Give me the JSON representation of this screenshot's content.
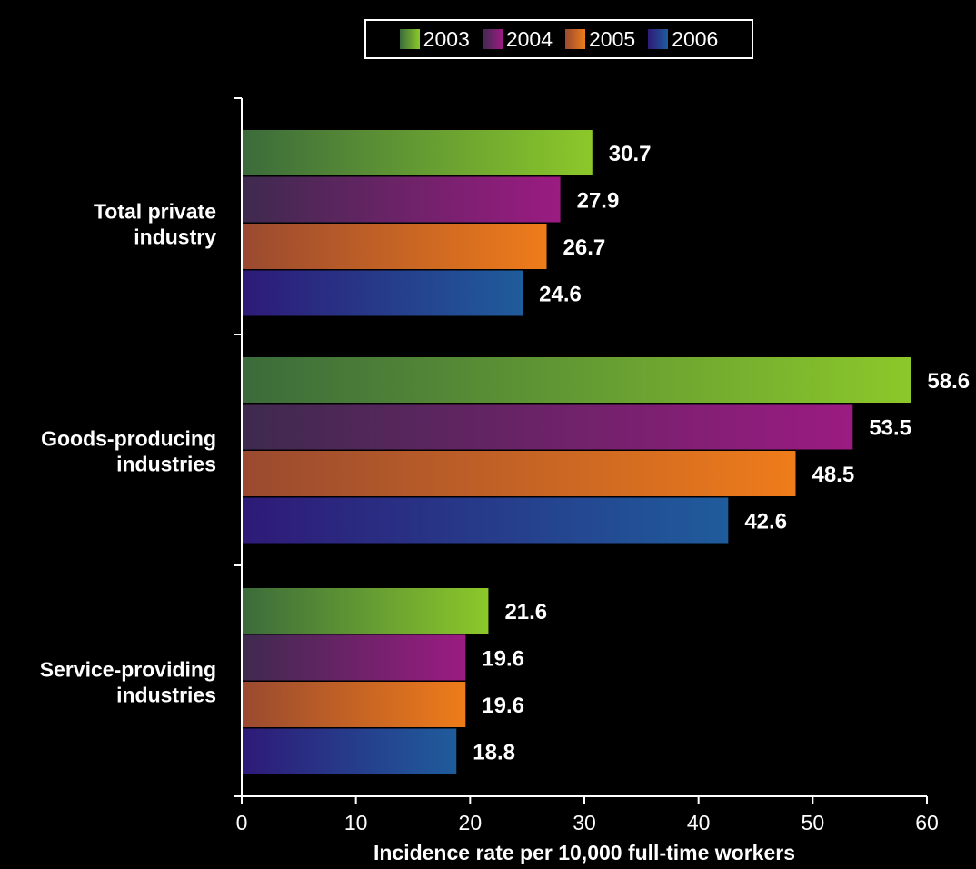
{
  "chart_data": {
    "type": "bar",
    "orientation": "horizontal",
    "categories": [
      "Total private industry",
      "Goods-producing industries",
      "Service-providing industries"
    ],
    "category_lines": [
      [
        "Total private",
        "industry"
      ],
      [
        "Goods-producing",
        "industries"
      ],
      [
        "Service-providing",
        "industries"
      ]
    ],
    "series": [
      {
        "name": "2003",
        "values": [
          30.7,
          58.6,
          21.6
        ],
        "color_start": "#3b6b3b",
        "color_end": "#8cc82a"
      },
      {
        "name": "2004",
        "values": [
          27.9,
          53.5,
          19.6
        ],
        "color_start": "#3e2a4e",
        "color_end": "#9b1b82"
      },
      {
        "name": "2005",
        "values": [
          26.7,
          48.5,
          19.6
        ],
        "color_start": "#9a4a30",
        "color_end": "#ee7c1a"
      },
      {
        "name": "2006",
        "values": [
          24.6,
          42.6,
          18.8
        ],
        "color_start": "#2e1a78",
        "color_end": "#1f5c9c"
      }
    ],
    "xlabel": "Incidence rate per 10,000 full-time workers",
    "xlim": [
      0,
      60
    ],
    "xticks": [
      "0",
      "10",
      "20",
      "30",
      "40",
      "50",
      "60"
    ],
    "grid": false,
    "legend_position": "top-center",
    "data_labels": true
  }
}
